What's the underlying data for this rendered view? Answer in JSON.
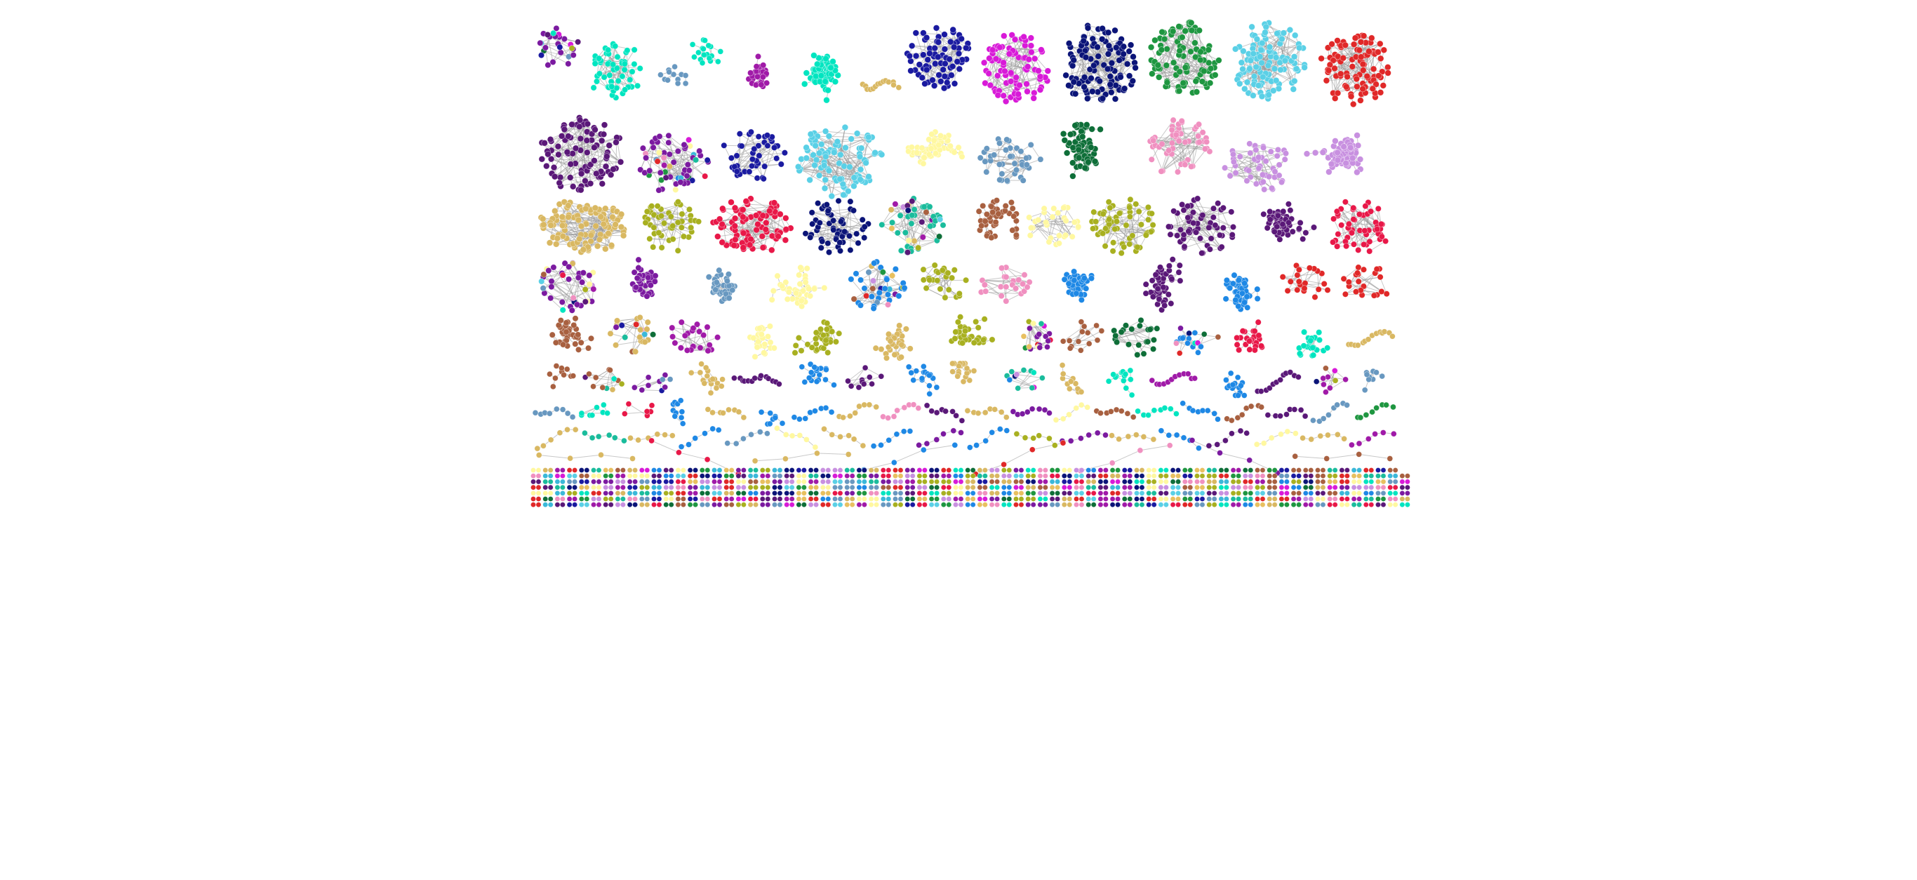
{
  "diagram": {
    "type": "network-component-gallery",
    "background": "#ffffff",
    "palette": [
      "#e02828",
      "#1abc9c",
      "#00e5c0",
      "#1e88e5",
      "#3bb8d9",
      "#5ad0e6",
      "#0b1478",
      "#1a1aa0",
      "#d81ad8",
      "#a01aa8",
      "#7b1aa0",
      "#5a1878",
      "#e8c060",
      "#d9b862",
      "#1e9640",
      "#0e6e38",
      "#a8b020",
      "#a86040",
      "#f090c0",
      "#c890e0",
      "#6898c0",
      "#fff8a0",
      "#e81848"
    ],
    "rows": [
      {
        "clusters": [
          {
            "color": "#7b1aa0",
            "size": 26,
            "shape": "mixed",
            "multicolor": true
          },
          {
            "color": "#00e5c0",
            "size": 55,
            "shape": "dense"
          },
          {
            "color": "#6898c0",
            "size": 12,
            "shape": "tree"
          },
          {
            "color": "#00e5c0",
            "size": 18,
            "shape": "tree"
          },
          {
            "color": "#a01aa8",
            "size": 30,
            "shape": "star"
          },
          {
            "color": "#00e5c0",
            "size": 70,
            "shape": "star"
          },
          {
            "color": "#d9b862",
            "size": 14,
            "shape": "chain"
          },
          {
            "color": "#1a1aa0",
            "size": 75,
            "shape": "dense"
          },
          {
            "color": "#d81ad8",
            "size": 85,
            "shape": "dense"
          },
          {
            "color": "#0b1478",
            "size": 110,
            "shape": "dense"
          },
          {
            "color": "#1e9640",
            "size": 95,
            "shape": "dense"
          },
          {
            "color": "#5ad0e6",
            "size": 110,
            "shape": "dense"
          },
          {
            "color": "#e02828",
            "size": 95,
            "shape": "dense"
          }
        ]
      },
      {
        "clusters": [
          {
            "color": "#5a1878",
            "size": 90,
            "shape": "dense"
          },
          {
            "color": "#7b1aa0",
            "size": 60,
            "shape": "dense",
            "multicolor": true
          },
          {
            "color": "#1a1aa0",
            "size": 45,
            "shape": "dense"
          },
          {
            "color": "#5ad0e6",
            "size": 90,
            "shape": "dense"
          },
          {
            "color": "#fff8a0",
            "size": 60,
            "shape": "tree"
          },
          {
            "color": "#6898c0",
            "size": 40,
            "shape": "dense"
          },
          {
            "color": "#0e6e38",
            "size": 75,
            "shape": "tree"
          },
          {
            "color": "#f090c0",
            "size": 55,
            "shape": "dense"
          },
          {
            "color": "#c890e0",
            "size": 50,
            "shape": "dense"
          },
          {
            "color": "#c890e0",
            "size": 90,
            "shape": "star"
          }
        ]
      },
      {
        "clusters": [
          {
            "color": "#d9b862",
            "size": 110,
            "shape": "dense"
          },
          {
            "color": "#a8b020",
            "size": 45,
            "shape": "dense"
          },
          {
            "color": "#e81848",
            "size": 90,
            "shape": "dense"
          },
          {
            "color": "#0b1478",
            "size": 55,
            "shape": "dense"
          },
          {
            "color": "#1abc9c",
            "size": 50,
            "shape": "mixed",
            "multicolor": true
          },
          {
            "color": "#a86040",
            "size": 45,
            "shape": "tree"
          },
          {
            "color": "#fff8a0",
            "size": 30,
            "shape": "dense"
          },
          {
            "color": "#a8b020",
            "size": 60,
            "shape": "dense"
          },
          {
            "color": "#5a1878",
            "size": 60,
            "shape": "dense"
          },
          {
            "color": "#5a1878",
            "size": 55,
            "shape": "tree"
          },
          {
            "color": "#e81848",
            "size": 55,
            "shape": "dense"
          }
        ]
      },
      {
        "clusters": [
          {
            "color": "#7b1aa0",
            "size": 40,
            "shape": "mixed",
            "multicolor": true
          },
          {
            "color": "#7b1aa0",
            "size": 45,
            "shape": "star"
          },
          {
            "color": "#6898c0",
            "size": 45,
            "shape": "star"
          },
          {
            "color": "#fff8a0",
            "size": 40,
            "shape": "tree"
          },
          {
            "color": "#1e88e5",
            "size": 40,
            "shape": "mixed",
            "multicolor": true
          },
          {
            "color": "#a8b020",
            "size": 25,
            "shape": "dense"
          },
          {
            "color": "#f090c0",
            "size": 22,
            "shape": "dense"
          },
          {
            "color": "#1e88e5",
            "size": 55,
            "shape": "star"
          },
          {
            "color": "#5a1878",
            "size": 45,
            "shape": "tree"
          },
          {
            "color": "#1e88e5",
            "size": 45,
            "shape": "star"
          },
          {
            "color": "#e02828",
            "size": 22,
            "shape": "dense"
          },
          {
            "color": "#e02828",
            "size": 22,
            "shape": "dense"
          }
        ]
      },
      {
        "clusters": [
          {
            "color": "#a86040",
            "size": 35,
            "shape": "tree"
          },
          {
            "color": "#d9b862",
            "size": 25,
            "shape": "mixed",
            "multicolor": true
          },
          {
            "color": "#a01aa8",
            "size": 25,
            "shape": "dense"
          },
          {
            "color": "#fff8a0",
            "size": 25,
            "shape": "tree"
          },
          {
            "color": "#a8b020",
            "size": 35,
            "shape": "tree"
          },
          {
            "color": "#d9b862",
            "size": 30,
            "shape": "tree"
          },
          {
            "color": "#a8b020",
            "size": 35,
            "shape": "tree"
          },
          {
            "color": "#7b1aa0",
            "size": 20,
            "shape": "mixed",
            "multicolor": true
          },
          {
            "color": "#a86040",
            "size": 14,
            "shape": "dense"
          },
          {
            "color": "#0e6e38",
            "size": 22,
            "shape": "dense"
          },
          {
            "color": "#1e88e5",
            "size": 18,
            "shape": "mixed",
            "multicolor": true
          },
          {
            "color": "#e81848",
            "size": 24,
            "shape": "tree"
          },
          {
            "color": "#00e5c0",
            "size": 22,
            "shape": "tree"
          },
          {
            "color": "#d9b862",
            "size": 14,
            "shape": "chain"
          }
        ]
      },
      {
        "clusters": [
          {
            "color": "#a86040",
            "size": 10,
            "shape": "tree"
          },
          {
            "color": "#a86040",
            "size": 12,
            "shape": "mixed",
            "multicolor": true
          },
          {
            "color": "#7b1aa0",
            "size": 10,
            "shape": "mixed",
            "multicolor": true
          },
          {
            "color": "#d9b862",
            "size": 18,
            "shape": "tree"
          },
          {
            "color": "#5a1878",
            "size": 14,
            "shape": "chain"
          },
          {
            "color": "#1e88e5",
            "size": 18,
            "shape": "tree"
          },
          {
            "color": "#5a1878",
            "size": 10,
            "shape": "dense"
          },
          {
            "color": "#1e88e5",
            "size": 16,
            "shape": "tree"
          },
          {
            "color": "#d9b862",
            "size": 20,
            "shape": "tree"
          },
          {
            "color": "#1abc9c",
            "size": 12,
            "shape": "mixed",
            "multicolor": true
          },
          {
            "color": "#d9b862",
            "size": 12,
            "shape": "tree"
          },
          {
            "color": "#00e5c0",
            "size": 14,
            "shape": "tree"
          },
          {
            "color": "#a01aa8",
            "size": 12,
            "shape": "chain"
          },
          {
            "color": "#1e88e5",
            "size": 16,
            "shape": "tree"
          },
          {
            "color": "#5a1878",
            "size": 12,
            "shape": "chain"
          },
          {
            "color": "#a01aa8",
            "size": 10,
            "shape": "mixed",
            "multicolor": true
          },
          {
            "color": "#6898c0",
            "size": 10,
            "shape": "tree"
          }
        ]
      },
      {
        "clusters": [
          {
            "color": "#6898c0",
            "size": 8,
            "shape": "chain"
          },
          {
            "color": "#00e5c0",
            "size": 8,
            "shape": "dense"
          },
          {
            "color": "#e81848",
            "size": 6,
            "shape": "dense"
          },
          {
            "color": "#1e88e5",
            "size": 10,
            "shape": "tree"
          },
          {
            "color": "#d9b862",
            "size": 8,
            "shape": "chain"
          },
          {
            "color": "#1e88e5",
            "size": 8,
            "shape": "tree"
          },
          {
            "color": "#1e88e5",
            "size": 8,
            "shape": "chain"
          },
          {
            "color": "#d9b862",
            "size": 8,
            "shape": "chain"
          },
          {
            "color": "#f090c0",
            "size": 8,
            "shape": "chain"
          },
          {
            "color": "#5a1878",
            "size": 8,
            "shape": "chain"
          },
          {
            "color": "#d9b862",
            "size": 8,
            "shape": "chain"
          },
          {
            "color": "#7b1aa0",
            "size": 8,
            "shape": "chain"
          },
          {
            "color": "#fff8a0",
            "size": 6,
            "shape": "chain"
          },
          {
            "color": "#a86040",
            "size": 8,
            "shape": "chain"
          },
          {
            "color": "#00e5c0",
            "size": 8,
            "shape": "chain"
          },
          {
            "color": "#1e88e5",
            "size": 8,
            "shape": "chain"
          },
          {
            "color": "#a86040",
            "size": 8,
            "shape": "chain"
          },
          {
            "color": "#5a1878",
            "size": 8,
            "shape": "chain"
          },
          {
            "color": "#6898c0",
            "size": 8,
            "shape": "chain"
          },
          {
            "color": "#1e9640",
            "size": 8,
            "shape": "chain"
          }
        ]
      },
      {
        "clusters": [
          {
            "color": "#d9b862",
            "size": 6,
            "shape": "chain"
          },
          {
            "color": "#1abc9c",
            "size": 6,
            "shape": "chain"
          },
          {
            "color": "#d9b862",
            "size": 6,
            "shape": "chain"
          },
          {
            "color": "#1e88e5",
            "size": 6,
            "shape": "chain"
          },
          {
            "color": "#6898c0",
            "size": 6,
            "shape": "chain"
          },
          {
            "color": "#fff8a0",
            "size": 6,
            "shape": "chain"
          },
          {
            "color": "#d9b862",
            "size": 6,
            "shape": "chain"
          },
          {
            "color": "#1e88e5",
            "size": 6,
            "shape": "chain"
          },
          {
            "color": "#7b1aa0",
            "size": 6,
            "shape": "chain"
          },
          {
            "color": "#1e88e5",
            "size": 6,
            "shape": "chain"
          },
          {
            "color": "#a8b020",
            "size": 6,
            "shape": "chain"
          },
          {
            "color": "#7b1aa0",
            "size": 6,
            "shape": "chain"
          },
          {
            "color": "#d9b862",
            "size": 6,
            "shape": "chain"
          },
          {
            "color": "#1e88e5",
            "size": 6,
            "shape": "chain"
          },
          {
            "color": "#5a1878",
            "size": 6,
            "shape": "chain"
          },
          {
            "color": "#fff8a0",
            "size": 6,
            "shape": "chain"
          },
          {
            "color": "#d9b862",
            "size": 6,
            "shape": "chain"
          },
          {
            "color": "#a01aa8",
            "size": 6,
            "shape": "chain"
          }
        ]
      },
      {
        "clusters": [
          {
            "color": "#d9b862",
            "size": 4,
            "shape": "chain"
          },
          {
            "color": "#e81848",
            "size": 4,
            "shape": "chain"
          },
          {
            "color": "#d9b862",
            "size": 4,
            "shape": "chain"
          },
          {
            "color": "#1e88e5",
            "size": 4,
            "shape": "chain"
          },
          {
            "color": "#e02828",
            "size": 4,
            "shape": "chain"
          },
          {
            "color": "#f090c0",
            "size": 4,
            "shape": "chain"
          },
          {
            "color": "#7b1aa0",
            "size": 4,
            "shape": "chain"
          },
          {
            "color": "#a86040",
            "size": 4,
            "shape": "chain"
          }
        ]
      }
    ],
    "pair_rows": 6
  }
}
